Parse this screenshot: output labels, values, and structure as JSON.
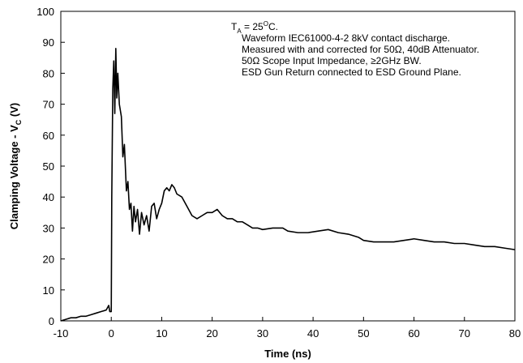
{
  "chart_data": {
    "type": "line",
    "x_label": "Time (ns)",
    "y_label": [
      "Clamping Voltage - V",
      "C",
      " (V)"
    ],
    "annotation_first": [
      "T",
      "A",
      " = 25",
      "O",
      "C."
    ],
    "annotations": [
      "Waveform IEC61000-4-2 8kV contact discharge.",
      "Measured with and corrected for 50Ω, 40dB Attenuator.",
      "50Ω Scope Input Impedance, ≥2GHz BW.",
      "ESD Gun Return connected to ESD Ground Plane."
    ],
    "color": "#000000",
    "x": [
      -10,
      -9,
      -8,
      -7,
      -6,
      -5,
      -4,
      -3,
      -2,
      -1,
      -0.5,
      -0.3,
      0,
      0.1,
      0.3,
      0.5,
      0.7,
      0.9,
      1.1,
      1.3,
      1.6,
      2,
      2.3,
      2.6,
      3,
      3.3,
      3.6,
      3.9,
      4.2,
      4.5,
      4.8,
      5.2,
      5.6,
      6,
      6.5,
      7,
      7.5,
      8,
      8.5,
      9,
      9.5,
      10,
      10.5,
      11,
      11.5,
      12,
      12.5,
      13,
      14,
      15,
      16,
      17,
      18,
      19,
      20,
      21,
      22,
      23,
      24,
      25,
      26,
      27,
      28,
      29,
      30,
      32,
      34,
      35,
      37,
      39,
      41,
      43,
      45,
      47,
      49,
      50,
      52,
      54,
      56,
      58,
      60,
      62,
      64,
      66,
      68,
      70,
      72,
      74,
      76,
      78,
      80
    ],
    "values": [
      0,
      0.5,
      1,
      1,
      1.5,
      1.5,
      2,
      2.5,
      3,
      3.5,
      5,
      3,
      3,
      40,
      75,
      84,
      67,
      88,
      72,
      80,
      70,
      66,
      53,
      57,
      42,
      45,
      36,
      38,
      29,
      37,
      32,
      36,
      28,
      35,
      31,
      34,
      29,
      37,
      38,
      33,
      36,
      38,
      42,
      43,
      42,
      44,
      43,
      41,
      40,
      37,
      34,
      33,
      34,
      35,
      35,
      36,
      34,
      33,
      33,
      32,
      32,
      31,
      30,
      30,
      29.5,
      30,
      30,
      29,
      28.5,
      28.5,
      29,
      29.5,
      28.5,
      28,
      27,
      26,
      25.5,
      25.5,
      25.5,
      26,
      26.5,
      26,
      25.5,
      25.5,
      25,
      25,
      24.5,
      24,
      24,
      23.5,
      23
    ],
    "xlim": [
      -10,
      80
    ],
    "ylim": [
      0,
      100
    ],
    "xticks": [
      -10,
      0,
      10,
      20,
      30,
      40,
      50,
      60,
      70,
      80
    ],
    "yticks": [
      0,
      10,
      20,
      30,
      40,
      50,
      60,
      70,
      80,
      90,
      100
    ]
  }
}
